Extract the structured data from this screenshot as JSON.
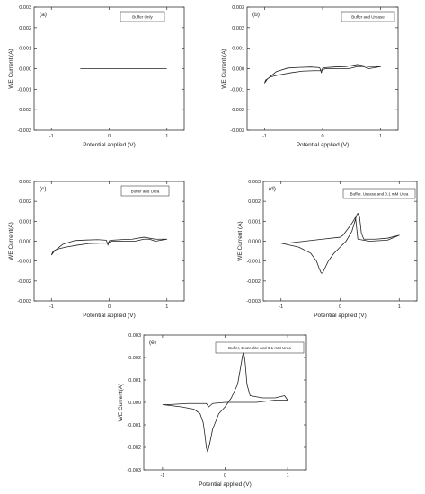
{
  "chart_data": [
    {
      "type": "line",
      "panel_label": "(a)",
      "legend": "Buffer Only",
      "xlabel": "Potential applied (V)",
      "ylabel": "WE Current (A)",
      "xlim": [
        -1.3,
        1.3
      ],
      "ylim": [
        -0.003,
        0.003
      ],
      "xticks": [
        "-1",
        "0",
        "1"
      ],
      "yticks": [
        "0.003",
        "0.002",
        "0.001",
        "0.000",
        "-0.001",
        "-0.002",
        "-0.003"
      ],
      "series": [
        {
          "x": [
            -0.5,
            1.0
          ],
          "y": [
            0.0,
            0.0
          ]
        }
      ]
    },
    {
      "type": "line",
      "panel_label": "(b)",
      "legend": "Buffer and Urease",
      "xlabel": "Potential applied (V)",
      "ylabel": "WE Current (A)",
      "xlim": [
        -1.3,
        1.3
      ],
      "ylim": [
        -0.003,
        0.003
      ],
      "xticks": [
        "-1",
        "0",
        "1"
      ],
      "yticks": [
        "0.003",
        "0.002",
        "0.001",
        "0.000",
        "-0.001",
        "-0.002",
        "-0.003"
      ],
      "series": [
        {
          "x": [
            -1.0,
            -0.98,
            -0.9,
            -0.75,
            -0.55,
            -0.35,
            -0.15,
            -0.05,
            0.0,
            0.05,
            0.2,
            0.45,
            0.6,
            0.7,
            0.8,
            1.0,
            1.0,
            0.8,
            0.6,
            0.4,
            0.2,
            0.05,
            0.0,
            -0.02,
            -0.05,
            -0.2,
            -0.4,
            -0.6,
            -0.8,
            -0.95,
            -1.0
          ],
          "y": [
            -0.0007,
            -0.00055,
            -0.0004,
            -0.0003,
            -0.0002,
            -0.00012,
            -0.0001,
            -0.0001,
            -5e-05,
            0.0,
            0.0,
            0.0,
            0.0001,
            0.0001,
            0.0,
            0.0001,
            0.0001,
            0.0001,
            0.0002,
            0.0001,
            8e-05,
            5e-05,
            2e-05,
            -0.0002,
            5e-05,
            8e-05,
            6e-05,
            3e-05,
            -0.00015,
            -0.0005,
            -0.0007
          ]
        }
      ]
    },
    {
      "type": "line",
      "panel_label": "(c)",
      "legend": "Buffer and Urea",
      "xlabel": "Potential applied (V)",
      "ylabel": "WE Current(A)",
      "xlim": [
        -1.3,
        1.3
      ],
      "ylim": [
        -0.003,
        0.003
      ],
      "xticks": [
        "-1",
        "0",
        "1"
      ],
      "yticks": [
        "0.003",
        "0.002",
        "0.001",
        "0.000",
        "-0.001",
        "-0.002",
        "-0.003"
      ],
      "series": [
        {
          "x": [
            -1.0,
            -0.97,
            -0.9,
            -0.75,
            -0.55,
            -0.35,
            -0.15,
            -0.05,
            0.0,
            0.05,
            0.2,
            0.45,
            0.6,
            0.7,
            0.8,
            1.0,
            1.0,
            0.8,
            0.6,
            0.4,
            0.2,
            0.05,
            0.0,
            -0.02,
            -0.05,
            -0.2,
            -0.4,
            -0.6,
            -0.8,
            -0.95,
            -1.0
          ],
          "y": [
            -0.0007,
            -0.0005,
            -0.0004,
            -0.0003,
            -0.0002,
            -0.00012,
            -0.0001,
            -0.0001,
            -5e-05,
            0.0,
            0.0,
            0.0,
            0.0001,
            0.0001,
            0.0,
            0.0001,
            0.0001,
            0.0001,
            0.0002,
            0.0001,
            8e-05,
            5e-05,
            2e-05,
            -0.0002,
            5e-05,
            8e-05,
            6e-05,
            3e-05,
            -0.00015,
            -0.0005,
            -0.0007
          ]
        }
      ]
    },
    {
      "type": "line",
      "panel_label": "(d)",
      "legend": "Buffer, Urease and 0.1 mM Urea",
      "xlabel": "Potential applied (V)",
      "ylabel": "WE Current (A)",
      "xlim": [
        -1.3,
        1.3
      ],
      "ylim": [
        -0.003,
        0.003
      ],
      "xticks": [
        "-1",
        "0",
        "1"
      ],
      "yticks": [
        "0.003",
        "0.002",
        "0.001",
        "0.000",
        "-0.001",
        "-0.002",
        "-0.003"
      ],
      "series": [
        {
          "x": [
            -1.0,
            -0.7,
            -0.5,
            -0.4,
            -0.35,
            -0.32,
            -0.3,
            -0.28,
            -0.2,
            -0.1,
            0.0,
            0.1,
            0.2,
            0.25,
            0.28,
            0.3,
            0.33,
            0.36,
            0.4,
            0.6,
            0.8,
            1.0,
            1.0,
            0.8,
            0.5,
            0.3,
            0.26,
            0.2,
            0.15,
            0.1,
            0.05,
            0.0,
            -0.3,
            -0.6,
            -0.9,
            -1.0
          ],
          "y": [
            -0.0001,
            -0.0003,
            -0.0006,
            -0.001,
            -0.0014,
            -0.0016,
            -0.0016,
            -0.0015,
            -0.001,
            -0.0006,
            -0.0003,
            0.0,
            0.0005,
            0.001,
            0.0013,
            0.0014,
            0.0012,
            0.0004,
            0.0001,
            0.0001,
            0.00015,
            0.0003,
            0.0003,
            5e-05,
            0.0,
            0.0001,
            0.0012,
            0.0009,
            0.0007,
            0.0005,
            0.0003,
            0.0002,
            0.0001,
            0.0,
            -0.0001,
            -0.0001
          ]
        }
      ]
    },
    {
      "type": "line",
      "panel_label": "(e)",
      "legend": "Buffer, Biozeolite and 0.1 mM Urea",
      "xlabel": "Potential applied (V)",
      "ylabel": "WE Current(A)",
      "xlim": [
        -1.3,
        1.3
      ],
      "ylim": [
        -0.003,
        0.003
      ],
      "xticks": [
        "-1",
        "0",
        "1"
      ],
      "yticks": [
        "0.003",
        "0.002",
        "0.001",
        "0.000",
        "-0.001",
        "-0.002",
        "-0.003"
      ],
      "series": [
        {
          "x": [
            -1.0,
            -0.7,
            -0.5,
            -0.4,
            -0.35,
            -0.32,
            -0.3,
            -0.28,
            -0.25,
            -0.2,
            -0.1,
            0.0,
            0.1,
            0.2,
            0.25,
            0.28,
            0.3,
            0.32,
            0.35,
            0.4,
            0.6,
            0.8,
            0.95,
            1.0,
            1.0,
            0.8,
            0.5,
            0.3,
            0.1,
            0.0,
            -0.2,
            -0.26,
            -0.3,
            -0.6,
            -0.9,
            -1.0
          ],
          "y": [
            -0.0001,
            -0.0002,
            -0.0003,
            -0.0005,
            -0.0009,
            -0.0015,
            -0.002,
            -0.0022,
            -0.0019,
            -0.0012,
            -0.0005,
            -0.0002,
            0.0002,
            0.0008,
            0.0016,
            0.0021,
            0.0022,
            0.0018,
            0.0008,
            0.0003,
            0.0002,
            0.0002,
            0.0003,
            0.0001,
            0.0001,
            0.0001,
            0.0,
            0.0,
            0.0,
            0.0,
            -5e-05,
            -0.0002,
            -5e-05,
            -5e-05,
            -0.0001,
            -0.0001
          ]
        }
      ]
    }
  ]
}
